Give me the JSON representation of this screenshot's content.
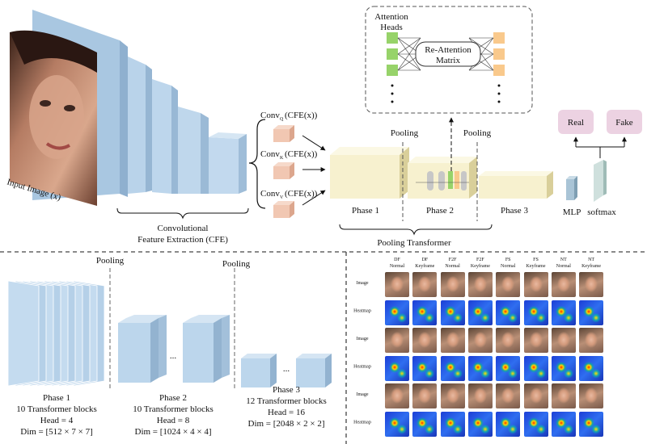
{
  "top": {
    "input_label": "Input Image (x)",
    "cfe_label_1": "Convolutional",
    "cfe_label_2": "Feature Extraction (CFE)",
    "conv_base": "Conv",
    "conv_q_sub": "Q",
    "conv_k_sub": "K",
    "conv_v_sub": "V",
    "conv_arg": "(CFE(x))",
    "attention_heads_1": "Attention",
    "attention_heads_2": "Heads",
    "reattention_1": "Re-Attention",
    "reattention_2": "Matrix",
    "pooling_1": "Pooling",
    "pooling_2": "Pooling",
    "phase1": "Phase 1",
    "phase2": "Phase 2",
    "phase3": "Phase 3",
    "mlp": "MLP",
    "softmax": "softmax",
    "real": "Real",
    "fake": "Fake",
    "pooling_transformer": "Pooling Transformer"
  },
  "bottom_left": {
    "pooling_1": "Pooling",
    "pooling_2": "Pooling",
    "ellipsis": "...",
    "phases": [
      {
        "title": "Phase 1",
        "blocks": "10 Transformer blocks",
        "head": "Head = 4",
        "dim": "Dim = [512 × 7 × 7]"
      },
      {
        "title": "Phase 2",
        "blocks": "10 Transformer blocks",
        "head": "Head = 8",
        "dim": "Dim = [1024 × 4 × 4]"
      },
      {
        "title": "Phase 3",
        "blocks": "12 Transformer blocks",
        "head": "Head = 16",
        "dim": "Dim = [2048 × 2 × 2]"
      }
    ]
  },
  "bottom_right": {
    "columns": [
      [
        "DF",
        "Normal"
      ],
      [
        "DF",
        "Keyframe"
      ],
      [
        "F2F",
        "Normal"
      ],
      [
        "F2F",
        "Keyframe"
      ],
      [
        "FS",
        "Normal"
      ],
      [
        "FS",
        "Keyframe"
      ],
      [
        "NT",
        "Normal"
      ],
      [
        "NT",
        "Keyframe"
      ]
    ],
    "rows": [
      "Image",
      "Heatmap",
      "Image",
      "Heatmap",
      "Image",
      "Heatmap"
    ]
  },
  "colors": {
    "cnn_block": "#bcd6ec",
    "phase_block": "#f7f1cf",
    "qkv_cube": "#f1c7b2",
    "head_green": "#97d36a",
    "head_orange": "#f9c98c",
    "label_pink": "#ecd2e2"
  }
}
